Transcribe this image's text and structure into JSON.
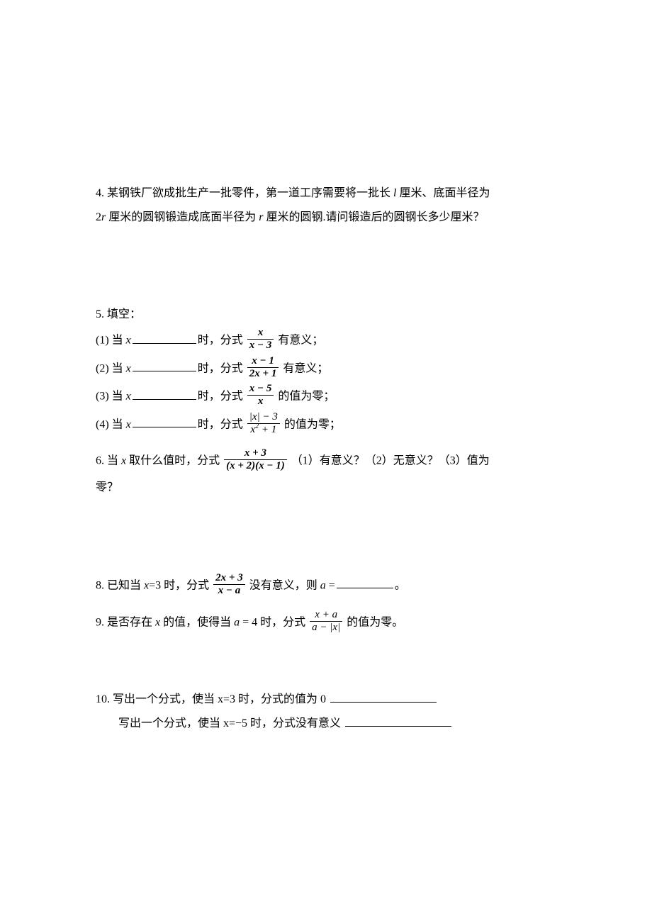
{
  "q4": {
    "line1_a": "4. 某钢铁厂欲成批生产一批零件，第一道工序需要将一批长 ",
    "var_l": "l",
    "line1_b": " 厘米、底面半径为",
    "line2_a": "2",
    "var_r1": "r",
    "line2_b": " 厘米的圆钢锻造成底面半径为 ",
    "var_r2": "r",
    "line2_c": " 厘米的圆钢.请问锻造后的圆钢长多少厘米？"
  },
  "q5": {
    "head": "5. 填空：",
    "p1": {
      "pre": "(1) 当 ",
      "var": "x",
      "mid": "时，分式",
      "num": "x",
      "den": "x − 3",
      "post": "有意义；"
    },
    "p2": {
      "pre": "(2) 当 ",
      "var": "x",
      "mid": "时，分式",
      "num": "x − 1",
      "den": "2x + 1",
      "post": "有意义；"
    },
    "p3": {
      "pre": "(3) 当 ",
      "var": "x",
      "mid": "时，分式",
      "num": "x − 5",
      "den": "x",
      "post": "的值为零；"
    },
    "p4": {
      "pre": "(4) 当 ",
      "var": "x",
      "mid": "时，分式",
      "num": "|x| − 3",
      "den": "x² + 1",
      "post": "的值为零；"
    }
  },
  "q6": {
    "pre": "6. 当 ",
    "var": "x",
    "mid": " 取什么值时，分式",
    "num": "x + 3",
    "den": "(x + 2)(x − 1)",
    "post_a": "（1）有意义？（2）无意义？（3）值为",
    "post_b": "零？"
  },
  "q8": {
    "pre": "8. 已知当 ",
    "eq1": "x",
    "eq1b": "=3 时，分式",
    "num": "2x + 3",
    "den": "x − a",
    "mid": "没有意义，则 ",
    "var_a": "a",
    "eq2": " =",
    "end": "。"
  },
  "q9": {
    "pre": "9. 是否存在 ",
    "var_x": "x",
    "mid1": " 的值，使得当 ",
    "var_a": "a",
    "eq": " = 4 时，分式",
    "num": "x + a",
    "den": "a − |x|",
    "post": "的值为零。"
  },
  "q10": {
    "line1": "10. 写出一个分式，使当 x=3 时，分式的值为 0 ",
    "line2": "写出一个分式，使当 x=−5 时，分式没有意义 "
  }
}
